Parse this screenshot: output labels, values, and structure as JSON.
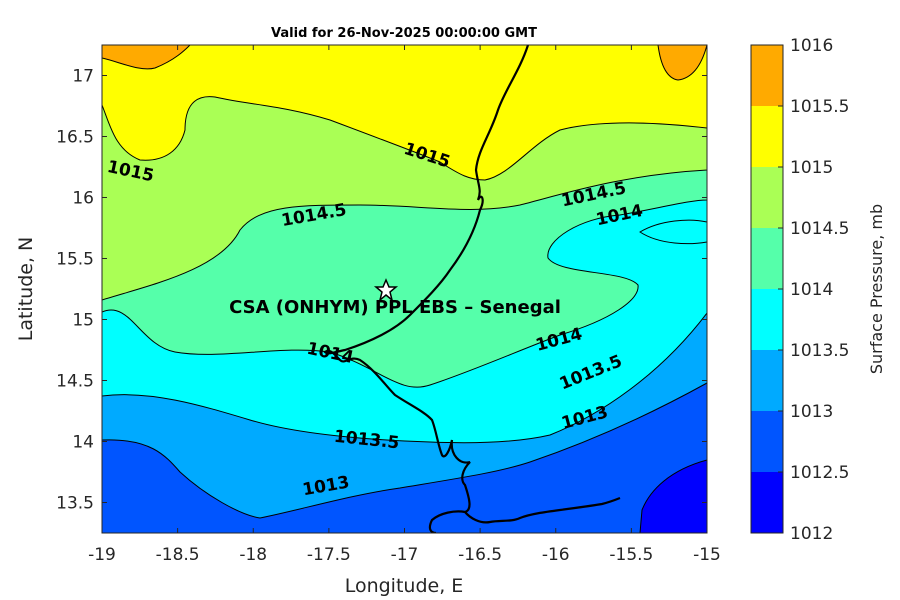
{
  "chart_data": {
    "type": "contour",
    "title": "Valid for 26-Nov-2025 00:00:00 GMT",
    "xlabel": "Longitude, E",
    "ylabel": "Latitude, N",
    "xlim": [
      -19,
      -15
    ],
    "ylim": [
      13.25,
      17.25
    ],
    "xticks": [
      "-19",
      "-18.5",
      "-18",
      "-17.5",
      "-17",
      "-16.5",
      "-16",
      "-15.5",
      "-15"
    ],
    "yticks": [
      "13.5",
      "14",
      "14.5",
      "15",
      "15.5",
      "16",
      "16.5",
      "17"
    ],
    "colorbar": {
      "label": "Surface Pressure, mb",
      "levels": [
        "1012",
        "1012.5",
        "1013",
        "1013.5",
        "1014",
        "1014.5",
        "1015",
        "1015.5",
        "1016"
      ],
      "colors": [
        "#0000ff",
        "#0055ff",
        "#00aaff",
        "#00ffff",
        "#55ffaa",
        "#aaff55",
        "#ffff00",
        "#ffaa00",
        "#ff5500"
      ]
    },
    "contour_labels": [
      {
        "text": "1015",
        "x": -16.85,
        "y": 16.35,
        "angle": 18
      },
      {
        "text": "1015",
        "x": -18.81,
        "y": 16.22,
        "angle": 12
      },
      {
        "text": "1014.5",
        "x": -17.6,
        "y": 15.86,
        "angle": -10
      },
      {
        "text": "1014.5",
        "x": -15.75,
        "y": 16.03,
        "angle": -12
      },
      {
        "text": "1014",
        "x": -15.58,
        "y": 15.86,
        "angle": -12
      },
      {
        "text": "1014",
        "x": -17.49,
        "y": 14.73,
        "angle": 12
      },
      {
        "text": "1014",
        "x": -15.98,
        "y": 14.84,
        "angle": -15
      },
      {
        "text": "1013.5",
        "x": -17.25,
        "y": 14.02,
        "angle": 6
      },
      {
        "text": "1013.5",
        "x": -15.77,
        "y": 14.57,
        "angle": -22
      },
      {
        "text": "1013",
        "x": -17.52,
        "y": 13.64,
        "angle": -10
      },
      {
        "text": "1013",
        "x": -15.81,
        "y": 14.2,
        "angle": -15
      }
    ],
    "site": {
      "name": "CSA (ONHYM) PPL EBS  – Senegal",
      "lon": -17.12,
      "lat": 15.22
    }
  }
}
